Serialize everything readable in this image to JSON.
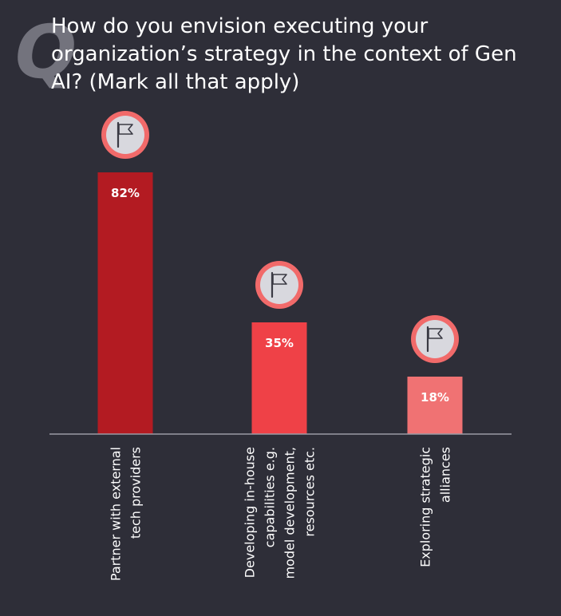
{
  "question": {
    "mark": "Q",
    "text": "How do you envision executing your organization’s strategy in the context of Gen AI? (Mark all that apply)"
  },
  "chart_data": {
    "type": "bar",
    "title": "How do you envision executing your organization’s strategy in the context of Gen AI? (Mark all that apply)",
    "categories": [
      "Partner with external tech providers",
      "Developing in-house capabilities e.g. model development, resources etc.",
      "Exploring strategic alliances"
    ],
    "category_lines": [
      [
        "Partner with external",
        "tech providers"
      ],
      [
        "Developing in-house",
        "capabilities e.g.",
        "model development,",
        "resources etc."
      ],
      [
        "Exploring strategic",
        "alliances"
      ]
    ],
    "values": [
      82,
      35,
      18
    ],
    "value_labels": [
      "82%",
      "35%",
      "18%"
    ],
    "unit": "%",
    "ylim": [
      0,
      100
    ],
    "grid": false,
    "legend": "none",
    "colors": [
      "#b31b22",
      "#ef4147",
      "#f07273"
    ],
    "badge_ring_color": "#f16a6a",
    "badge_fill_color": "#d8d8de",
    "icon": "flag-icon"
  }
}
